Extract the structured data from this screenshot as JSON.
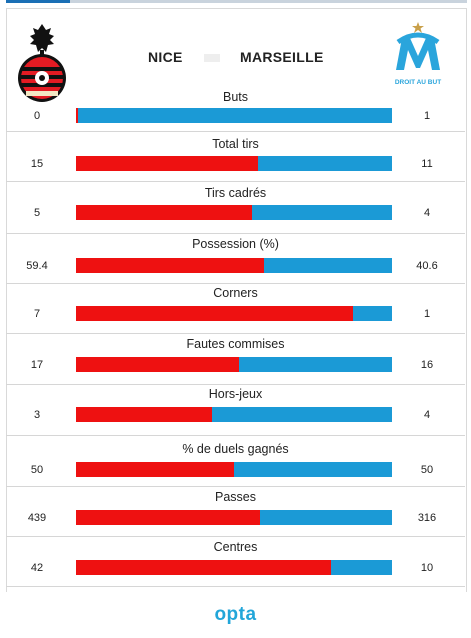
{
  "header": {
    "home_team": "NICE",
    "away_team": "MARSEILLE",
    "away_crest_motto": "DROIT AU BUT"
  },
  "colors": {
    "home": "#ee1111",
    "away": "#1b9ad6"
  },
  "stats": [
    {
      "label": "Buts",
      "home": "0",
      "away": "1",
      "home_share": 0.005
    },
    {
      "label": "Total tirs",
      "home": "15",
      "away": "11",
      "home_share": 0.577
    },
    {
      "label": "Tirs cadrés",
      "home": "5",
      "away": "4",
      "home_share": 0.556
    },
    {
      "label": "Possession (%)",
      "home": "59.4",
      "away": "40.6",
      "home_share": 0.594
    },
    {
      "label": "Corners",
      "home": "7",
      "away": "1",
      "home_share": 0.875
    },
    {
      "label": "Fautes commises",
      "home": "17",
      "away": "16",
      "home_share": 0.515
    },
    {
      "label": "Hors-jeux",
      "home": "3",
      "away": "4",
      "home_share": 0.429
    },
    {
      "label": "% de duels gagnés",
      "home": "50",
      "away": "50",
      "home_share": 0.5
    },
    {
      "label": "Passes",
      "home": "439",
      "away": "316",
      "home_share": 0.581
    },
    {
      "label": "Centres",
      "home": "42",
      "away": "10",
      "home_share": 0.808
    }
  ],
  "footer": {
    "brand": "opta"
  }
}
